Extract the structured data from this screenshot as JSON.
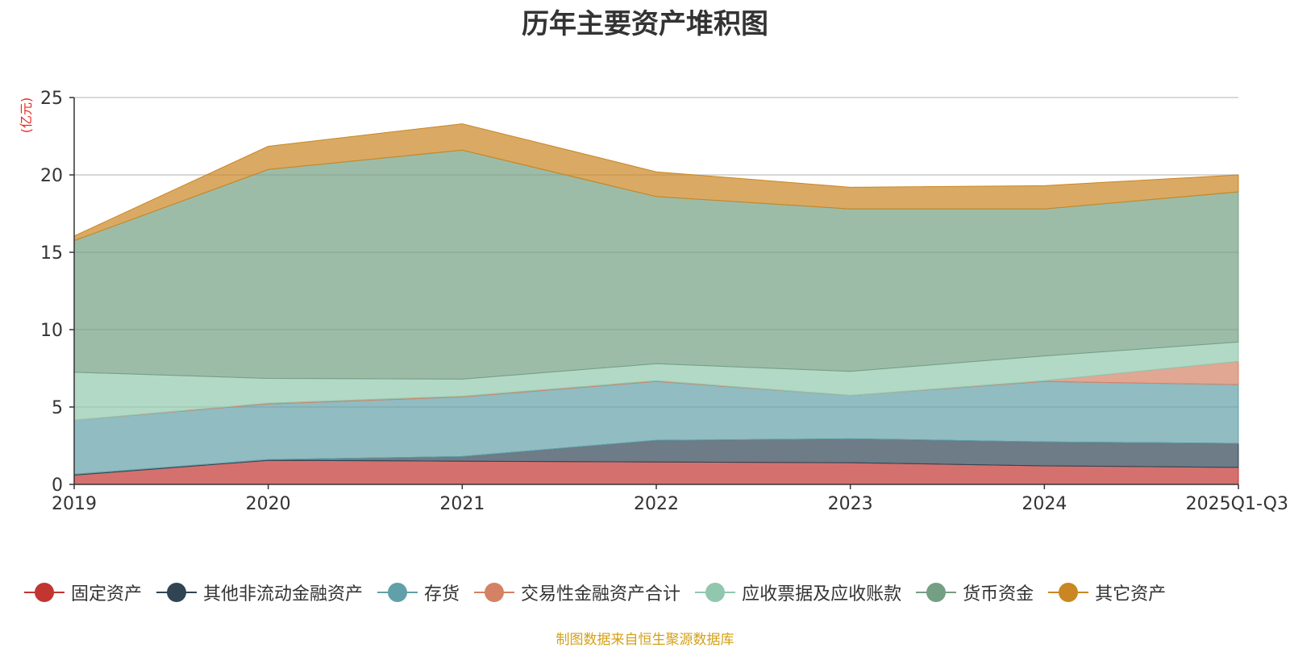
{
  "chart_data": {
    "type": "area",
    "stacked": true,
    "title": "历年主要资产堆积图",
    "ylabel": "(亿元)",
    "xlabel": "",
    "ylim": [
      0,
      25
    ],
    "yticks": [
      0,
      5,
      10,
      15,
      20,
      25
    ],
    "categories": [
      "2019",
      "2020",
      "2021",
      "2022",
      "2023",
      "2024",
      "2025Q1-Q3"
    ],
    "series": [
      {
        "name": "固定资产",
        "color": "#c23531",
        "values": [
          0.6,
          1.55,
          1.5,
          1.45,
          1.4,
          1.2,
          1.1
        ]
      },
      {
        "name": "其他非流动金融资产",
        "color": "#2f4554",
        "values": [
          0.05,
          0.05,
          0.3,
          1.4,
          1.55,
          1.55,
          1.55
        ]
      },
      {
        "name": "存货",
        "color": "#61a0a8",
        "values": [
          3.5,
          3.6,
          3.85,
          3.8,
          2.8,
          3.9,
          3.8
        ]
      },
      {
        "name": "交易性金融资产合计",
        "color": "#d48265",
        "values": [
          0,
          0.05,
          0.05,
          0.05,
          0,
          0.05,
          1.5
        ]
      },
      {
        "name": "应收票据及应收账款",
        "color": "#91c7ae",
        "values": [
          3.1,
          1.6,
          1.1,
          1.1,
          1.55,
          1.6,
          1.25
        ]
      },
      {
        "name": "货币资金",
        "color": "#749f83",
        "values": [
          8.5,
          13.5,
          14.8,
          10.8,
          10.5,
          9.5,
          9.7
        ]
      },
      {
        "name": "其它资产",
        "color": "#ca8622",
        "values": [
          0.3,
          1.5,
          1.7,
          1.6,
          1.4,
          1.5,
          1.1
        ]
      }
    ],
    "grid": true,
    "legend_position": "bottom"
  },
  "source_note": "制图数据来自恒生聚源数据库"
}
